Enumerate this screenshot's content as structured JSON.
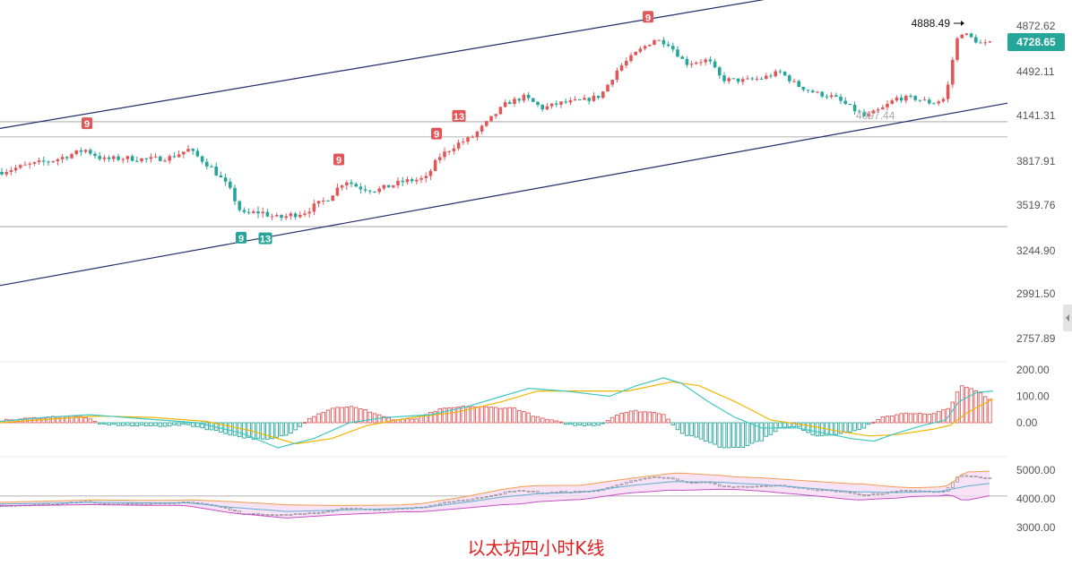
{
  "caption": "以太坊四小时K线",
  "last_price": "4728.65",
  "high_marker": "4888.49",
  "low_marker": "4097.44",
  "colors": {
    "up": "#e15759",
    "down": "#26a69a",
    "channel": "#1f2d6b",
    "macd_fast": "#3fc7c2",
    "macd_slow": "#f0b400",
    "boll_upper": "#f39c4a",
    "boll_mid": "#5bb0d0",
    "boll_lower": "#c74fc7",
    "boll_fill": "#f6d9f3"
  },
  "chart_data": [
    {
      "type": "candlestick",
      "title": "",
      "y_ticks": [
        {
          "label": "4872.62",
          "value": 4872.62
        },
        {
          "label": "4492.11",
          "value": 4492.11
        },
        {
          "label": "4141.31",
          "value": 4141.31
        },
        {
          "label": "3817.91",
          "value": 3817.91
        },
        {
          "label": "3519.76",
          "value": 3519.76
        },
        {
          "label": "3244.90",
          "value": 3244.9
        },
        {
          "label": "2991.50",
          "value": 2991.5
        },
        {
          "label": "2757.89",
          "value": 2757.89
        }
      ],
      "horizontal_levels": [
        4097.44,
        3990,
        3390
      ],
      "channel": {
        "upper": [
          [
            0,
            4050
          ],
          [
            890,
            5140
          ]
        ],
        "lower": [
          [
            0,
            3040
          ],
          [
            1124,
            4240
          ]
        ]
      },
      "close_path": [
        [
          0,
          3745
        ],
        [
          30,
          3790
        ],
        [
          60,
          3825
        ],
        [
          95,
          3900
        ],
        [
          115,
          3830
        ],
        [
          140,
          3840
        ],
        [
          165,
          3830
        ],
        [
          190,
          3845
        ],
        [
          210,
          3900
        ],
        [
          235,
          3780
        ],
        [
          255,
          3640
        ],
        [
          270,
          3460
        ],
        [
          290,
          3480
        ],
        [
          310,
          3440
        ],
        [
          340,
          3480
        ],
        [
          365,
          3560
        ],
        [
          385,
          3690
        ],
        [
          400,
          3640
        ],
        [
          420,
          3620
        ],
        [
          450,
          3680
        ],
        [
          475,
          3700
        ],
        [
          490,
          3850
        ],
        [
          510,
          3940
        ],
        [
          525,
          3980
        ],
        [
          545,
          4100
        ],
        [
          565,
          4240
        ],
        [
          585,
          4290
        ],
        [
          605,
          4200
        ],
        [
          625,
          4240
        ],
        [
          650,
          4260
        ],
        [
          670,
          4300
        ],
        [
          690,
          4520
        ],
        [
          710,
          4650
        ],
        [
          730,
          4760
        ],
        [
          745,
          4730
        ],
        [
          765,
          4560
        ],
        [
          790,
          4590
        ],
        [
          805,
          4430
        ],
        [
          830,
          4420
        ],
        [
          850,
          4440
        ],
        [
          870,
          4490
        ],
        [
          890,
          4380
        ],
        [
          910,
          4320
        ],
        [
          930,
          4290
        ],
        [
          950,
          4200
        ],
        [
          965,
          4130
        ],
        [
          985,
          4200
        ],
        [
          1000,
          4280
        ],
        [
          1020,
          4280
        ],
        [
          1040,
          4240
        ],
        [
          1055,
          4280
        ],
        [
          1063,
          4600
        ],
        [
          1070,
          4830
        ],
        [
          1080,
          4790
        ],
        [
          1095,
          4720
        ],
        [
          1108,
          4729
        ]
      ],
      "signal_labels": [
        {
          "text": "9",
          "x": 97,
          "side": "top"
        },
        {
          "text": "9",
          "x": 378,
          "side": "top"
        },
        {
          "text": "9",
          "x": 487,
          "side": "top"
        },
        {
          "text": "13",
          "x": 512,
          "side": "top"
        },
        {
          "text": "9",
          "x": 723,
          "side": "top"
        },
        {
          "text": "9",
          "x": 269,
          "side": "bottom"
        },
        {
          "text": "13",
          "x": 296,
          "side": "bottom"
        }
      ]
    },
    {
      "type": "macd",
      "y_ticks": [
        {
          "label": "200.00",
          "value": 200
        },
        {
          "label": "100.00",
          "value": 100
        },
        {
          "label": "0.00",
          "value": 0
        }
      ],
      "histogram_path": [
        [
          0,
          8
        ],
        [
          40,
          18
        ],
        [
          70,
          25
        ],
        [
          95,
          22
        ],
        [
          110,
          -5
        ],
        [
          150,
          -12
        ],
        [
          180,
          -12
        ],
        [
          210,
          -8
        ],
        [
          240,
          -30
        ],
        [
          270,
          -55
        ],
        [
          300,
          -65
        ],
        [
          325,
          -40
        ],
        [
          345,
          18
        ],
        [
          370,
          55
        ],
        [
          390,
          62
        ],
        [
          410,
          45
        ],
        [
          440,
          10
        ],
        [
          465,
          15
        ],
        [
          490,
          50
        ],
        [
          520,
          62
        ],
        [
          545,
          58
        ],
        [
          575,
          55
        ],
        [
          600,
          20
        ],
        [
          640,
          -10
        ],
        [
          670,
          -8
        ],
        [
          690,
          35
        ],
        [
          710,
          45
        ],
        [
          740,
          35
        ],
        [
          760,
          -40
        ],
        [
          790,
          -70
        ],
        [
          805,
          -95
        ],
        [
          830,
          -90
        ],
        [
          850,
          -65
        ],
        [
          870,
          -20
        ],
        [
          890,
          -15
        ],
        [
          910,
          -50
        ],
        [
          940,
          -40
        ],
        [
          960,
          -25
        ],
        [
          985,
          20
        ],
        [
          1010,
          38
        ],
        [
          1040,
          30
        ],
        [
          1060,
          60
        ],
        [
          1072,
          140
        ],
        [
          1090,
          120
        ],
        [
          1108,
          80
        ]
      ],
      "fast_path": [
        [
          0,
          5
        ],
        [
          50,
          20
        ],
        [
          100,
          30
        ],
        [
          160,
          15
        ],
        [
          220,
          0
        ],
        [
          270,
          -40
        ],
        [
          310,
          -95
        ],
        [
          350,
          -60
        ],
        [
          390,
          0
        ],
        [
          430,
          20
        ],
        [
          480,
          30
        ],
        [
          520,
          60
        ],
        [
          560,
          100
        ],
        [
          590,
          130
        ],
        [
          630,
          120
        ],
        [
          680,
          100
        ],
        [
          710,
          140
        ],
        [
          740,
          170
        ],
        [
          760,
          150
        ],
        [
          790,
          80
        ],
        [
          820,
          20
        ],
        [
          850,
          -20
        ],
        [
          890,
          -20
        ],
        [
          920,
          -40
        ],
        [
          950,
          -60
        ],
        [
          975,
          -70
        ],
        [
          1000,
          -40
        ],
        [
          1030,
          -10
        ],
        [
          1055,
          10
        ],
        [
          1070,
          80
        ],
        [
          1090,
          115
        ],
        [
          1108,
          120
        ]
      ],
      "slow_path": [
        [
          0,
          0
        ],
        [
          60,
          15
        ],
        [
          110,
          25
        ],
        [
          170,
          20
        ],
        [
          230,
          5
        ],
        [
          280,
          -30
        ],
        [
          330,
          -80
        ],
        [
          370,
          -60
        ],
        [
          410,
          -10
        ],
        [
          460,
          20
        ],
        [
          510,
          40
        ],
        [
          560,
          80
        ],
        [
          600,
          120
        ],
        [
          650,
          120
        ],
        [
          700,
          120
        ],
        [
          750,
          155
        ],
        [
          780,
          140
        ],
        [
          820,
          80
        ],
        [
          860,
          10
        ],
        [
          900,
          -10
        ],
        [
          940,
          -35
        ],
        [
          970,
          -50
        ],
        [
          1000,
          -45
        ],
        [
          1040,
          -25
        ],
        [
          1060,
          -10
        ],
        [
          1080,
          40
        ],
        [
          1108,
          90
        ]
      ]
    },
    {
      "type": "bollinger",
      "y_ticks": [
        {
          "label": "5000.00",
          "value": 5000
        },
        {
          "label": "4000.00",
          "value": 4000
        },
        {
          "label": "3000.00",
          "value": 3000
        }
      ],
      "horizontal_level": 4097.44,
      "mid_path": [
        [
          0,
          3820
        ],
        [
          60,
          3850
        ],
        [
          100,
          3880
        ],
        [
          160,
          3860
        ],
        [
          210,
          3860
        ],
        [
          260,
          3700
        ],
        [
          320,
          3560
        ],
        [
          370,
          3600
        ],
        [
          420,
          3640
        ],
        [
          470,
          3690
        ],
        [
          520,
          3880
        ],
        [
          560,
          4060
        ],
        [
          600,
          4180
        ],
        [
          650,
          4230
        ],
        [
          700,
          4450
        ],
        [
          750,
          4600
        ],
        [
          800,
          4580
        ],
        [
          850,
          4500
        ],
        [
          900,
          4380
        ],
        [
          950,
          4250
        ],
        [
          1000,
          4220
        ],
        [
          1050,
          4260
        ],
        [
          1080,
          4450
        ],
        [
          1108,
          4550
        ]
      ],
      "width_path": [
        [
          0,
          60
        ],
        [
          100,
          80
        ],
        [
          200,
          90
        ],
        [
          260,
          200
        ],
        [
          320,
          230
        ],
        [
          380,
          160
        ],
        [
          450,
          120
        ],
        [
          520,
          200
        ],
        [
          580,
          300
        ],
        [
          640,
          250
        ],
        [
          700,
          250
        ],
        [
          760,
          300
        ],
        [
          820,
          220
        ],
        [
          900,
          250
        ],
        [
          960,
          280
        ],
        [
          1020,
          150
        ],
        [
          1060,
          160
        ],
        [
          1075,
          500
        ],
        [
          1108,
          420
        ]
      ]
    }
  ]
}
